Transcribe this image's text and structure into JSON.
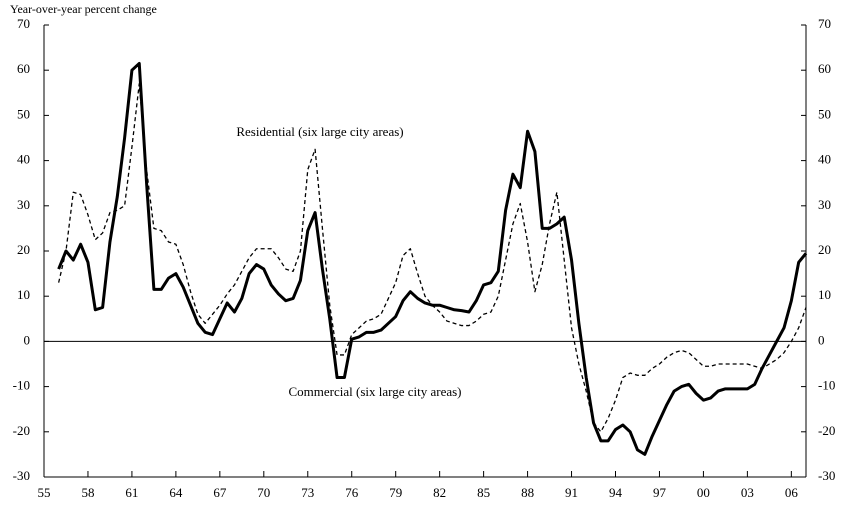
{
  "chart_data": {
    "type": "line",
    "ylabel": "Year-over-year percent change",
    "annotations": [
      "Residential (six large city areas)",
      "Commercial (six large city areas)"
    ],
    "x": [
      1956,
      1956.5,
      1957,
      1957.5,
      1958,
      1958.5,
      1959,
      1959.5,
      1960,
      1960.5,
      1961,
      1961.5,
      1962,
      1962.5,
      1963,
      1963.5,
      1964,
      1964.5,
      1965,
      1965.5,
      1966,
      1966.5,
      1967,
      1967.5,
      1968,
      1968.5,
      1969,
      1969.5,
      1970,
      1970.5,
      1971,
      1971.5,
      1972,
      1972.5,
      1973,
      1973.5,
      1974,
      1974.5,
      1975,
      1975.5,
      1976,
      1976.5,
      1977,
      1977.5,
      1978,
      1978.5,
      1979,
      1979.5,
      1980,
      1980.5,
      1981,
      1981.5,
      1982,
      1982.5,
      1983,
      1983.5,
      1984,
      1984.5,
      1985,
      1985.5,
      1986,
      1986.5,
      1987,
      1987.5,
      1988,
      1988.5,
      1989,
      1989.5,
      1990,
      1990.5,
      1991,
      1991.5,
      1992,
      1992.5,
      1993,
      1993.5,
      1994,
      1994.5,
      1995,
      1995.5,
      1996,
      1996.5,
      1997,
      1997.5,
      1998,
      1998.5,
      1999,
      1999.5,
      2000,
      2000.5,
      2001,
      2001.5,
      2002,
      2002.5,
      2003,
      2003.5,
      2004,
      2004.5,
      2005,
      2005.5,
      2006,
      2006.5,
      2007
    ],
    "series": [
      {
        "name": "Commercial (six large city areas)",
        "color": "#000000",
        "style": "solid",
        "values": [
          16,
          20,
          18,
          21.5,
          17.5,
          7,
          7.5,
          22,
          32,
          45,
          60,
          61.5,
          35,
          11.5,
          11.5,
          14,
          15,
          12,
          8,
          4,
          2,
          1.5,
          5,
          8.5,
          6.5,
          9.5,
          15,
          17,
          16,
          12.5,
          10.5,
          9,
          9.5,
          13.5,
          24.5,
          28.5,
          16,
          5,
          -8,
          -8,
          0.5,
          1,
          2,
          2,
          2.5,
          4,
          5.5,
          9,
          11,
          9.5,
          8.5,
          8,
          8,
          7.5,
          7,
          6.8,
          6.5,
          9,
          12.5,
          13,
          15.5,
          29,
          37,
          34,
          46.5,
          42,
          25,
          25,
          26,
          27.5,
          18,
          4,
          -8,
          -18,
          -22,
          -22,
          -19.5,
          -18.5,
          -20,
          -24,
          -25,
          -21,
          -17.5,
          -14,
          -11,
          -10,
          -9.5,
          -11.5,
          -13,
          -12.5,
          -11,
          -10.5,
          -10.5,
          -10.5,
          -10.5,
          -9.5,
          -6,
          -3,
          0,
          3,
          9,
          17.5,
          19.5
        ]
      },
      {
        "name": "Residential (six large city areas)",
        "color": "#000000",
        "style": "dashed",
        "values": [
          13,
          20,
          33,
          32.5,
          28,
          22.5,
          24,
          28.5,
          29,
          30,
          43,
          57,
          38,
          25,
          24.5,
          22,
          21.5,
          17,
          11,
          6,
          4,
          6,
          8,
          10.5,
          12.5,
          15.5,
          18.5,
          20.5,
          20.5,
          20.5,
          18.5,
          16,
          15.5,
          20,
          38,
          42.5,
          25,
          8,
          -3,
          -3,
          1.5,
          3,
          4.5,
          5,
          6,
          9.5,
          13,
          19,
          20.5,
          15,
          10,
          8,
          6.5,
          4.5,
          4,
          3.5,
          3.5,
          4.5,
          6,
          6.5,
          10,
          18,
          26,
          30.5,
          22,
          11,
          17,
          26,
          33,
          18,
          3,
          -5,
          -11,
          -18,
          -20,
          -17,
          -13,
          -8,
          -7,
          -7.5,
          -7.5,
          -6,
          -5,
          -3.5,
          -2.5,
          -2,
          -2.5,
          -4,
          -5.5,
          -5.5,
          -5,
          -5,
          -5,
          -5,
          -5,
          -5.5,
          -6,
          -5,
          -4,
          -2.5,
          0,
          3,
          7.5
        ]
      }
    ],
    "xlim": [
      1955,
      2007
    ],
    "xticks": [
      {
        "value": 1955,
        "label": "55"
      },
      {
        "value": 1958,
        "label": "58"
      },
      {
        "value": 1961,
        "label": "61"
      },
      {
        "value": 1964,
        "label": "64"
      },
      {
        "value": 1967,
        "label": "67"
      },
      {
        "value": 1970,
        "label": "70"
      },
      {
        "value": 1973,
        "label": "73"
      },
      {
        "value": 1976,
        "label": "76"
      },
      {
        "value": 1979,
        "label": "79"
      },
      {
        "value": 1982,
        "label": "82"
      },
      {
        "value": 1985,
        "label": "85"
      },
      {
        "value": 1988,
        "label": "88"
      },
      {
        "value": 1991,
        "label": "91"
      },
      {
        "value": 1994,
        "label": "94"
      },
      {
        "value": 1997,
        "label": "97"
      },
      {
        "value": 2000,
        "label": "00"
      },
      {
        "value": 2003,
        "label": "03"
      },
      {
        "value": 2006,
        "label": "06"
      }
    ],
    "ylim": [
      -30,
      70
    ],
    "yticks": [
      -30,
      -20,
      -10,
      0,
      10,
      20,
      30,
      40,
      50,
      60,
      70
    ],
    "y2lim": [
      -30,
      70
    ],
    "y2ticks": [
      -30,
      -20,
      -10,
      0,
      10,
      20,
      30,
      40,
      50,
      60,
      70
    ]
  }
}
